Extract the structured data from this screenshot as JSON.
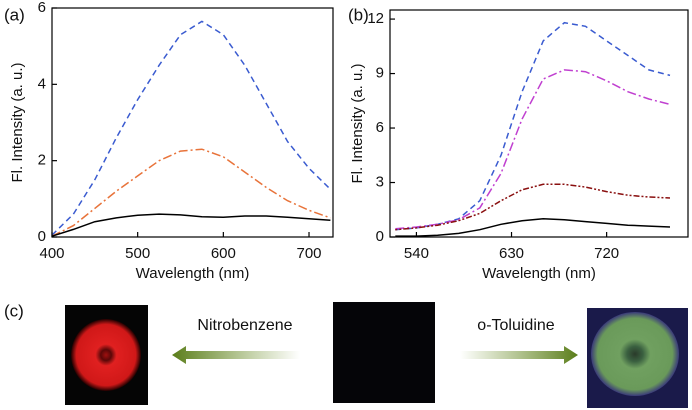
{
  "chart_data": [
    {
      "type": "line",
      "label": "(a)",
      "xlabel": "Wavelength (nm)",
      "ylabel": "Fl. Intensity (a. u.)",
      "x": [
        400,
        425,
        450,
        475,
        500,
        525,
        550,
        575,
        600,
        625,
        650,
        675,
        700,
        725
      ],
      "xlim": [
        400,
        728
      ],
      "xticks": [
        400,
        500,
        600,
        700
      ],
      "ylim": [
        0,
        6
      ],
      "yticks": [
        0,
        2,
        4,
        6
      ],
      "series": [
        {
          "color": "#3a5bd0",
          "style": "dashed",
          "values": [
            0.05,
            0.6,
            1.5,
            2.6,
            3.6,
            4.5,
            5.3,
            5.65,
            5.3,
            4.5,
            3.5,
            2.5,
            1.8,
            1.25
          ]
        },
        {
          "color": "#e8733a",
          "style": "dashdot",
          "values": [
            0.02,
            0.3,
            0.75,
            1.2,
            1.6,
            2.0,
            2.25,
            2.3,
            2.1,
            1.7,
            1.3,
            0.95,
            0.7,
            0.5
          ]
        },
        {
          "color": "#000000",
          "style": "solid",
          "values": [
            0.02,
            0.2,
            0.4,
            0.5,
            0.57,
            0.6,
            0.58,
            0.53,
            0.52,
            0.55,
            0.55,
            0.52,
            0.48,
            0.44
          ]
        }
      ]
    },
    {
      "type": "line",
      "label": "(b)",
      "xlabel": "Wavelength (nm)",
      "ylabel": "Fl. Intensity (a. u.)",
      "x": [
        520,
        540,
        560,
        580,
        600,
        620,
        640,
        660,
        680,
        700,
        720,
        740,
        760,
        780
      ],
      "xlim": [
        515,
        797
      ],
      "xticks": [
        540,
        630,
        720
      ],
      "ylim": [
        0,
        12.5
      ],
      "yticks": [
        0,
        3,
        6,
        9,
        12
      ],
      "series": [
        {
          "color": "#3a5bd0",
          "style": "dashed",
          "values": [
            0.4,
            0.5,
            0.7,
            1.0,
            2.0,
            4.5,
            8.0,
            10.8,
            11.8,
            11.6,
            10.8,
            10.0,
            9.2,
            8.9
          ]
        },
        {
          "color": "#c040d0",
          "style": "dashdot",
          "values": [
            0.45,
            0.55,
            0.7,
            0.95,
            1.6,
            3.5,
            6.5,
            8.7,
            9.2,
            9.1,
            8.6,
            8.0,
            7.6,
            7.3
          ]
        },
        {
          "color": "#8a1010",
          "style": "dotted",
          "values": [
            0.4,
            0.5,
            0.65,
            0.9,
            1.3,
            2.0,
            2.6,
            2.9,
            2.9,
            2.75,
            2.5,
            2.3,
            2.2,
            2.15
          ]
        },
        {
          "color": "#000000",
          "style": "solid",
          "values": [
            0.05,
            0.05,
            0.1,
            0.2,
            0.4,
            0.7,
            0.9,
            1.0,
            0.95,
            0.85,
            0.75,
            0.65,
            0.6,
            0.55
          ]
        }
      ]
    }
  ],
  "panel_c": {
    "label": "(c)",
    "left_arrow_label": "Nitrobenzene",
    "right_arrow_label": "o-Toluidine"
  }
}
